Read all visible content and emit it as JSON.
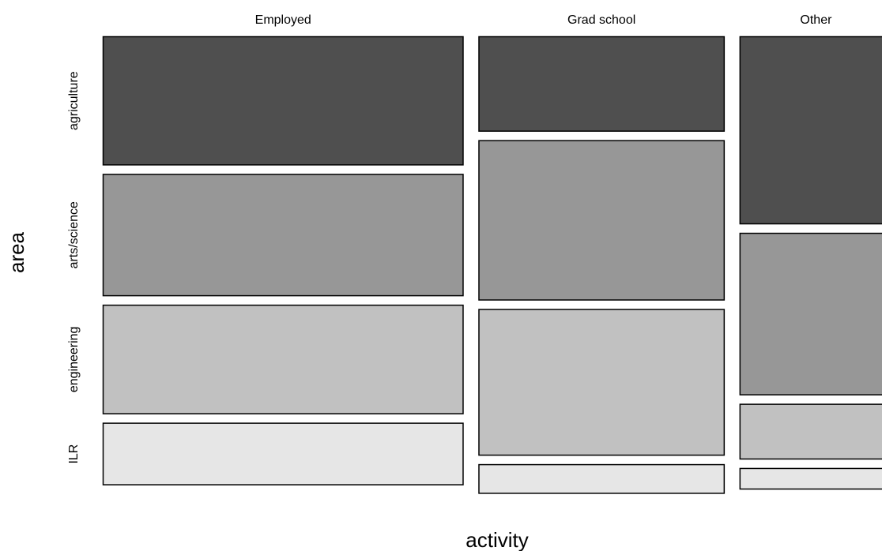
{
  "chart_data": {
    "type": "mosaic",
    "xlabel": "activity",
    "ylabel": "area",
    "columns": [
      "Employed",
      "Grad school",
      "Other"
    ],
    "rows": [
      "agriculture",
      "arts/science",
      "engineering",
      "ILR"
    ],
    "column_shares": [
      0.475,
      0.324,
      0.201
    ],
    "cell_shares": {
      "Employed": [
        0.302,
        0.286,
        0.256,
        0.146
      ],
      "Grad school": [
        0.223,
        0.375,
        0.343,
        0.069
      ],
      "Other": [
        0.44,
        0.38,
        0.13,
        0.05
      ]
    },
    "colors": {
      "agriculture": "#4f4f4f",
      "arts/science": "#979797",
      "engineering": "#c1c1c1",
      "ILR": "#e6e6e6"
    }
  }
}
